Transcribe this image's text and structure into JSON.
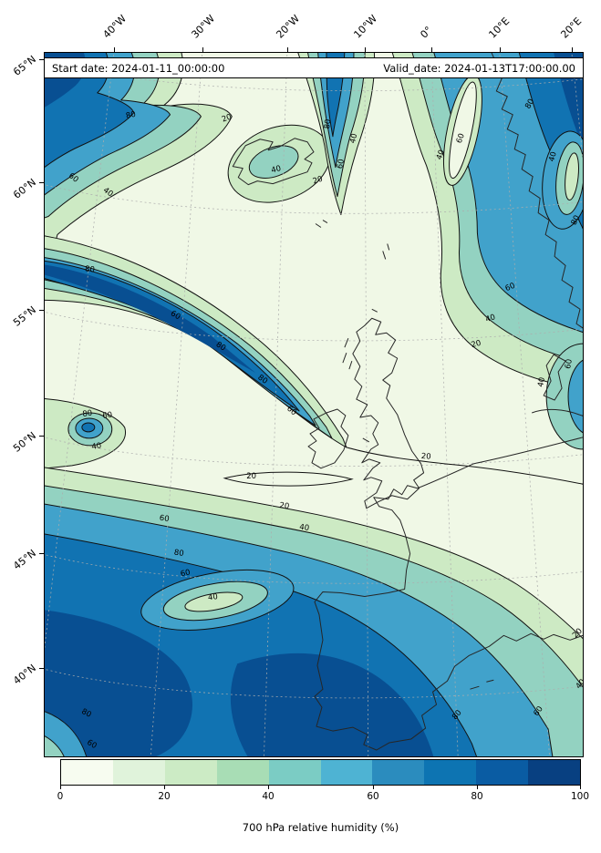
{
  "figure": {
    "header": {
      "start_date": "Start date: 2024-01-11_00:00:00",
      "valid_date": "Valid_date: 2024-01-13T17:00:00.00"
    },
    "axes": {
      "top_ticks": [
        "40°W",
        "30°W",
        "20°W",
        "10°W",
        "0°",
        "10°E",
        "20°E"
      ],
      "left_ticks": [
        "65°N",
        "60°N",
        "55°N",
        "50°N",
        "45°N",
        "40°N"
      ]
    },
    "colorbar": {
      "label": "700 hPa relative humidity (%)",
      "ticks": [
        "0",
        "20",
        "40",
        "60",
        "80",
        "100"
      ],
      "colors": [
        "#f7fcf0",
        "#e0f3db",
        "#ccebc5",
        "#a8ddb5",
        "#7bccc4",
        "#4eb3d3",
        "#2b8cbe",
        "#0d74b2",
        "#0a5ca3",
        "#084081"
      ]
    }
  },
  "chart_data": {
    "type": "heatmap",
    "title": "700 hPa relative humidity (%)",
    "variable": "relative humidity",
    "pressure_level": "700 hPa",
    "units": "%",
    "start_date": "2024-01-11_00:00:00",
    "valid_date": "2024-01-13T17:00:00.00",
    "value_range": [
      0,
      100
    ],
    "colorbar_tick_values": [
      0,
      20,
      40,
      60,
      80,
      100
    ],
    "contour_levels": [
      20,
      40,
      60,
      80
    ],
    "x_axis": {
      "type": "longitude",
      "ticks": [
        "40°W",
        "30°W",
        "20°W",
        "10°W",
        "0°",
        "10°E",
        "20°E"
      ]
    },
    "y_axis": {
      "type": "latitude",
      "ticks": [
        "65°N",
        "60°N",
        "55°N",
        "50°N",
        "45°N",
        "40°N"
      ]
    },
    "map_region": "North Atlantic and western Europe",
    "features": [
      {
        "location": "top-left corner, NW Atlantic near 40°W 63°N",
        "humidity_percent": "80-100"
      },
      {
        "location": "elongated frontal band from ~40°W 52°N toward southern Ireland",
        "humidity_percent": "60-100"
      },
      {
        "location": "central North Atlantic and British Isles dry slot",
        "humidity_percent": "0-20"
      },
      {
        "location": "Norwegian Sea and Scandinavia, top-right",
        "humidity_percent": "60-100"
      },
      {
        "location": "small closed feature near 42°W 50°N",
        "humidity_percent": "closed 40/60/80 contours"
      },
      {
        "location": "Bay of Biscay, Iberia and southern Atlantic, bottom of map",
        "humidity_percent": "60-100"
      },
      {
        "location": "dry tongue embedded in southern moist region",
        "humidity_percent": "20-40"
      }
    ]
  }
}
